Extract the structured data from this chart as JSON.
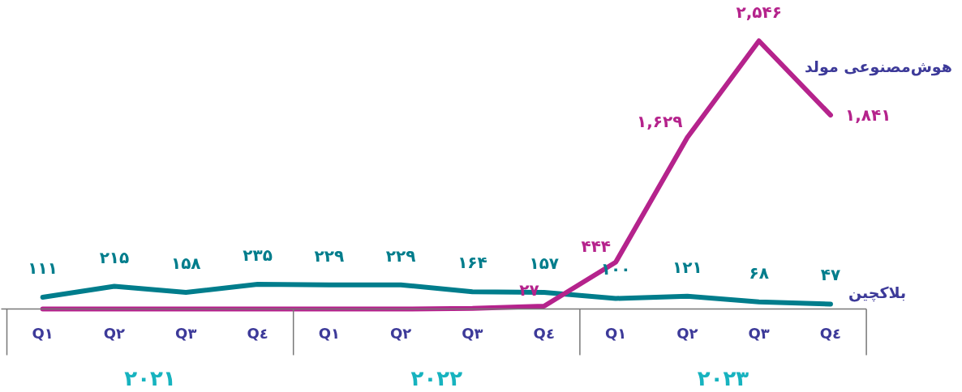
{
  "chart_data": {
    "type": "line",
    "categories": [
      "Q۱",
      "Q۲",
      "Q۳",
      "Q٤",
      "Q۱",
      "Q۲",
      "Q۳",
      "Q٤",
      "Q۱",
      "Q۲",
      "Q۳",
      "Q٤"
    ],
    "annotations": [
      "۲۰۲۱",
      "۲۰۲۲",
      "۲۰۲۳"
    ],
    "series": [
      {
        "name": "بلاکچین",
        "color": "#007d8c",
        "values": [
          111,
          215,
          158,
          235,
          229,
          229,
          164,
          157,
          100,
          121,
          68,
          47
        ],
        "value_labels": [
          "۱۱۱",
          "۲۱۵",
          "۱۵۸",
          "۲۳۵",
          "۲۲۹",
          "۲۲۹",
          "۱۶۴",
          "۱۵۷",
          "۱۰۰",
          "۱۲۱",
          "۶۸",
          "۴۷"
        ]
      },
      {
        "name": "هوش‌مصنوعی مولد",
        "color": "#b5238c",
        "values": [
          0,
          0,
          0,
          0,
          0,
          0,
          5,
          27,
          444,
          1629,
          2546,
          1841
        ],
        "value_labels": [
          null,
          null,
          null,
          null,
          null,
          null,
          null,
          "۲۷",
          "۴۴۴",
          "۱,۶۲۹",
          "۲,۵۴۶",
          "۱,۸۴۱"
        ]
      }
    ],
    "grid": false,
    "marker": "none",
    "line_style": "solid"
  }
}
